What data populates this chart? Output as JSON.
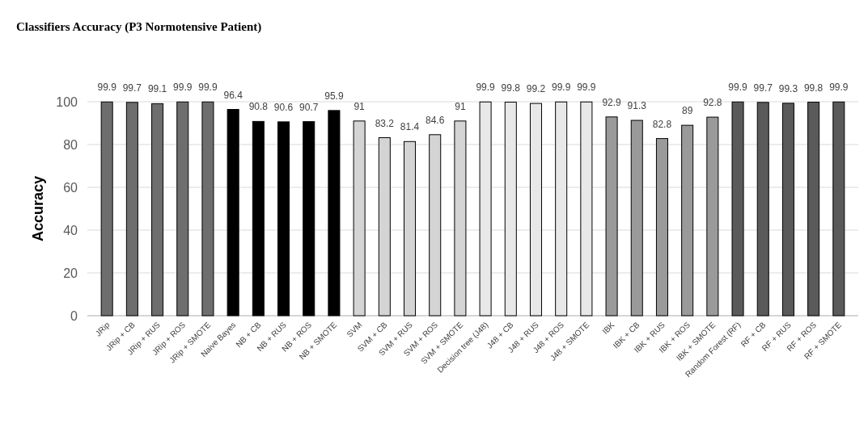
{
  "chart_data": {
    "type": "bar",
    "title": "Classifiers Accuracy  (P3 Normotensive Patient)",
    "ylabel": "Accuracy",
    "categories": [
      "JRip",
      "JRip + CB",
      "JRip + RUS",
      "JRip + ROS",
      "JRip + SMOTE",
      "Naive Bayes",
      "NB + CB",
      "NB + RUS",
      "NB + ROS",
      "NB + SMOTE",
      "SVM",
      "SVM + CB",
      "SVM + RUS",
      "SVM + ROS",
      "SVM + SMOTE",
      "Decision tree (J48)",
      "J48 + CB",
      "J48 + RUS",
      "J48 + ROS",
      "J48 + SMOTE",
      "IBK",
      "IBK + CB",
      "IBK + RUS",
      "IBK + ROS",
      "IBK + SMOTE",
      "Random Forest (RF)",
      "RF + CB",
      "RF + RUS",
      "RF + ROS",
      "RF + SMOTE"
    ],
    "values": [
      99.9,
      99.7,
      99.1,
      99.9,
      99.9,
      96.4,
      90.8,
      90.6,
      90.7,
      95.9,
      91,
      83.2,
      81.4,
      84.6,
      91,
      99.9,
      99.8,
      99.2,
      99.9,
      99.9,
      92.9,
      91.3,
      82.8,
      89,
      92.8,
      99.9,
      99.7,
      99.3,
      99.8,
      99.9
    ],
    "colors": [
      "#6e6e6e",
      "#6e6e6e",
      "#6e6e6e",
      "#6e6e6e",
      "#6e6e6e",
      "#000000",
      "#000000",
      "#000000",
      "#000000",
      "#000000",
      "#d4d4d4",
      "#d4d4d4",
      "#d4d4d4",
      "#d4d4d4",
      "#d4d4d4",
      "#e8e8e8",
      "#e8e8e8",
      "#e8e8e8",
      "#e8e8e8",
      "#e8e8e8",
      "#9a9a9a",
      "#9a9a9a",
      "#9a9a9a",
      "#9a9a9a",
      "#9a9a9a",
      "#5a5a5a",
      "#5a5a5a",
      "#5a5a5a",
      "#5a5a5a",
      "#5a5a5a"
    ],
    "ylim": [
      0,
      100
    ],
    "yticks": [
      0,
      20,
      40,
      60,
      80,
      100
    ],
    "grid": "y",
    "data_labels": true
  }
}
